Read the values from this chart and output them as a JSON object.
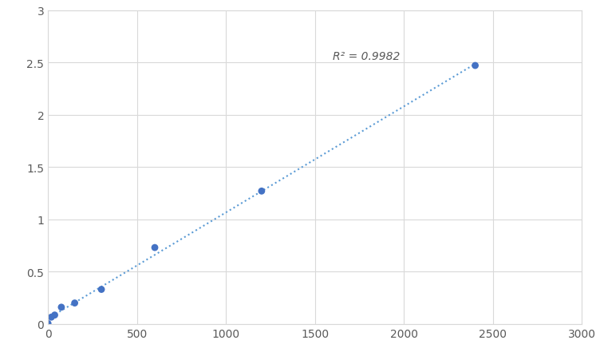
{
  "x_data": [
    0,
    18.75,
    37.5,
    75,
    150,
    300,
    600,
    1200,
    2400
  ],
  "y_data": [
    0.004,
    0.065,
    0.085,
    0.16,
    0.2,
    0.33,
    0.73,
    1.27,
    2.47
  ],
  "dot_color": "#4472C4",
  "line_color": "#5B9BD5",
  "dot_size": 40,
  "r2_text": "R² = 0.9982",
  "r2_x": 1600,
  "r2_y": 2.56,
  "xlim": [
    0,
    3000
  ],
  "ylim": [
    0,
    3
  ],
  "xticks": [
    0,
    500,
    1000,
    1500,
    2000,
    2500,
    3000
  ],
  "yticks": [
    0,
    0.5,
    1.0,
    1.5,
    2.0,
    2.5,
    3.0
  ],
  "grid_color": "#D9D9D9",
  "bg_color": "#FFFFFF",
  "font_size": 10,
  "line_width": 1.5
}
